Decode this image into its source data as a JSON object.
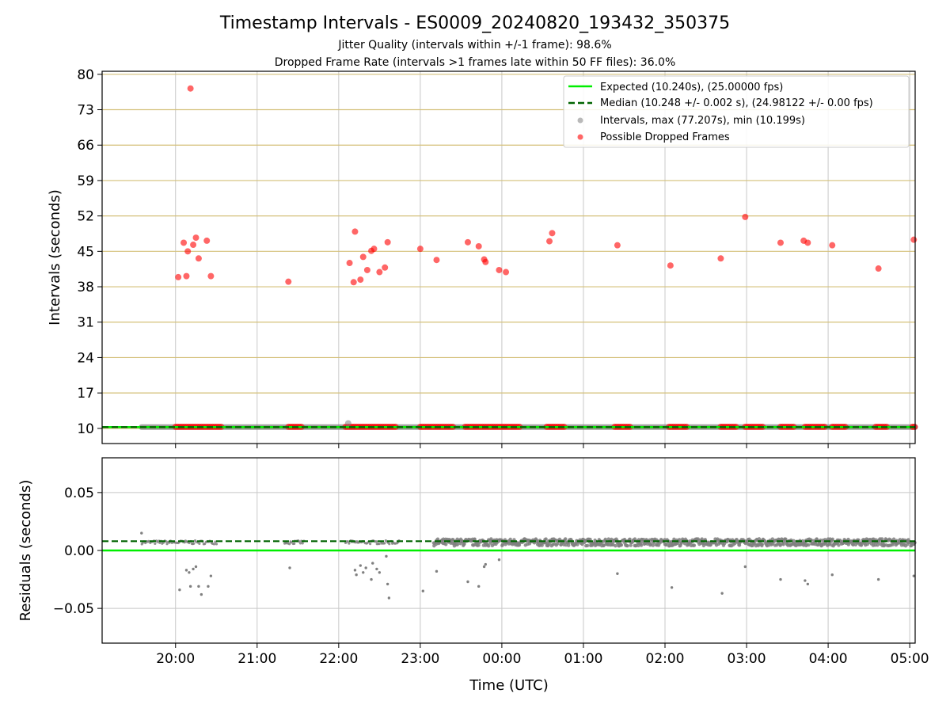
{
  "chart_data": [
    {
      "type": "scatter",
      "title": "Timestamp Intervals - ES0009_20240820_193432_350375",
      "subtitle_lines": [
        "Jitter Quality (intervals within +/-1 frame): 98.6%",
        "Dropped Frame Rate (intervals >1 frames late within 50 FF files): 36.0%"
      ],
      "xlabel": "",
      "ylabel": "Intervals (seconds)",
      "xlim": [
        "19:06",
        "05:04"
      ],
      "ylim": [
        7.0,
        80.6
      ],
      "yticks": [
        10,
        17,
        24,
        31,
        38,
        45,
        52,
        59,
        66,
        73,
        80
      ],
      "grid": true,
      "legend_position": "top-right",
      "legend": [
        "Expected (10.240s), (25.00000 fps)",
        "Median (10.248 +/- 0.002 s), (24.98122 +/- 0.00 fps)",
        "Intervals, max (77.207s), min (10.199s)",
        "Possible Dropped Frames"
      ],
      "colors": {
        "expected": "#00ee00",
        "median": "#006400",
        "intervals": "#808080",
        "dropped": "#ff0000",
        "hgrid": "#d4c07a",
        "vgrid": "#c8c8c8"
      },
      "expected_interval": 10.24,
      "median_interval": 10.248,
      "baseline_interval_range": [
        "19:35",
        "05:04"
      ],
      "series": [
        {
          "name": "Possible Dropped Frames",
          "points": [
            [
              "20:02",
              39.9
            ],
            [
              "20:06",
              46.7
            ],
            [
              "20:08",
              40.1
            ],
            [
              "20:09",
              45.0
            ],
            [
              "20:11",
              77.2
            ],
            [
              "20:13",
              46.3
            ],
            [
              "20:15",
              47.7
            ],
            [
              "20:17",
              43.6
            ],
            [
              "20:23",
              47.1
            ],
            [
              "20:26",
              40.1
            ],
            [
              "21:23",
              39.0
            ],
            [
              "22:08",
              42.7
            ],
            [
              "22:11",
              38.9
            ],
            [
              "22:12",
              48.9
            ],
            [
              "22:16",
              39.4
            ],
            [
              "22:18",
              43.9
            ],
            [
              "22:21",
              41.3
            ],
            [
              "22:24",
              45.1
            ],
            [
              "22:26",
              45.5
            ],
            [
              "22:30",
              40.9
            ],
            [
              "22:34",
              41.8
            ],
            [
              "22:36",
              46.8
            ],
            [
              "23:00",
              45.5
            ],
            [
              "23:12",
              43.3
            ],
            [
              "23:35",
              46.8
            ],
            [
              "23:43",
              46.0
            ],
            [
              "23:47",
              43.4
            ],
            [
              "23:48",
              42.9
            ],
            [
              "23:58",
              41.3
            ],
            [
              "00:03",
              40.9
            ],
            [
              "00:35",
              47.0
            ],
            [
              "00:37",
              48.6
            ],
            [
              "01:25",
              46.2
            ],
            [
              "02:04",
              42.2
            ],
            [
              "02:41",
              43.6
            ],
            [
              "02:59",
              51.8
            ],
            [
              "03:25",
              46.7
            ],
            [
              "03:42",
              47.1
            ],
            [
              "03:45",
              46.7
            ],
            [
              "04:03",
              46.2
            ],
            [
              "04:37",
              41.6
            ],
            [
              "05:03",
              47.3
            ]
          ]
        },
        {
          "name": "Intervals, max (77.207s), min (10.199s)",
          "points": [
            [
              "22:07",
              11.0
            ]
          ]
        },
        {
          "name": "Possible Dropped Frames (baseline)",
          "ranges": [
            [
              "20:00",
              "20:35"
            ],
            [
              "21:23",
              "21:33"
            ],
            [
              "22:05",
              "22:43"
            ],
            [
              "23:00",
              "23:24"
            ],
            [
              "23:33",
              "00:14"
            ],
            [
              "00:33",
              "00:46"
            ],
            [
              "01:23",
              "01:35"
            ],
            [
              "02:03",
              "02:16"
            ],
            [
              "02:41",
              "02:53"
            ],
            [
              "02:59",
              "03:12"
            ],
            [
              "03:25",
              "03:36"
            ],
            [
              "03:43",
              "03:58"
            ],
            [
              "04:03",
              "04:13"
            ],
            [
              "04:35",
              "04:44"
            ],
            [
              "05:02",
              "05:04"
            ]
          ],
          "value": 10.3
        }
      ]
    },
    {
      "type": "scatter",
      "xlabel": "Time (UTC)",
      "ylabel": "Residuals (seconds)",
      "xticks": [
        "20:00",
        "21:00",
        "22:00",
        "23:00",
        "00:00",
        "01:00",
        "02:00",
        "03:00",
        "04:00",
        "05:00"
      ],
      "xlim": [
        "19:06",
        "05:04"
      ],
      "ylim": [
        -0.08,
        0.08
      ],
      "yticks": [
        0.05,
        0.0,
        -0.05
      ],
      "ytick_labels": [
        "0.05",
        "0.00",
        "−0.05"
      ],
      "grid": true,
      "expected_residual": 0.0,
      "median_residual": 0.008,
      "series": [
        {
          "name": "Residuals (outliers)",
          "points": [
            [
              "19:35",
              0.015
            ],
            [
              "20:03",
              -0.034
            ],
            [
              "20:08",
              -0.017
            ],
            [
              "20:10",
              -0.019
            ],
            [
              "20:11",
              -0.031
            ],
            [
              "20:13",
              -0.016
            ],
            [
              "20:15",
              -0.014
            ],
            [
              "20:17",
              -0.031
            ],
            [
              "20:19",
              -0.038
            ],
            [
              "20:24",
              -0.031
            ],
            [
              "20:26",
              -0.022
            ],
            [
              "21:24",
              -0.015
            ],
            [
              "22:12",
              -0.017
            ],
            [
              "22:13",
              -0.021
            ],
            [
              "22:16",
              -0.013
            ],
            [
              "22:18",
              -0.019
            ],
            [
              "22:20",
              -0.015
            ],
            [
              "22:24",
              -0.025
            ],
            [
              "22:25",
              -0.011
            ],
            [
              "22:28",
              -0.016
            ],
            [
              "22:30",
              -0.019
            ],
            [
              "22:35",
              -0.005
            ],
            [
              "22:36",
              -0.029
            ],
            [
              "22:37",
              -0.041
            ],
            [
              "23:02",
              -0.035
            ],
            [
              "23:12",
              -0.018
            ],
            [
              "23:35",
              -0.027
            ],
            [
              "23:43",
              -0.031
            ],
            [
              "23:47",
              -0.014
            ],
            [
              "23:48",
              -0.012
            ],
            [
              "23:58",
              -0.008
            ],
            [
              "01:25",
              -0.02
            ],
            [
              "02:05",
              -0.032
            ],
            [
              "02:42",
              -0.037
            ],
            [
              "02:59",
              -0.014
            ],
            [
              "03:25",
              -0.025
            ],
            [
              "03:43",
              -0.026
            ],
            [
              "03:45",
              -0.029
            ],
            [
              "04:03",
              -0.021
            ],
            [
              "04:37",
              -0.025
            ],
            [
              "05:03",
              -0.022
            ]
          ]
        },
        {
          "name": "Residuals (main band)",
          "ranges": [
            [
              "19:35",
              "20:30"
            ],
            [
              "21:20",
              "21:35"
            ],
            [
              "22:05",
              "22:45"
            ],
            [
              "23:10",
              "05:04"
            ]
          ],
          "center": 0.007,
          "spread": 0.006
        }
      ]
    }
  ]
}
